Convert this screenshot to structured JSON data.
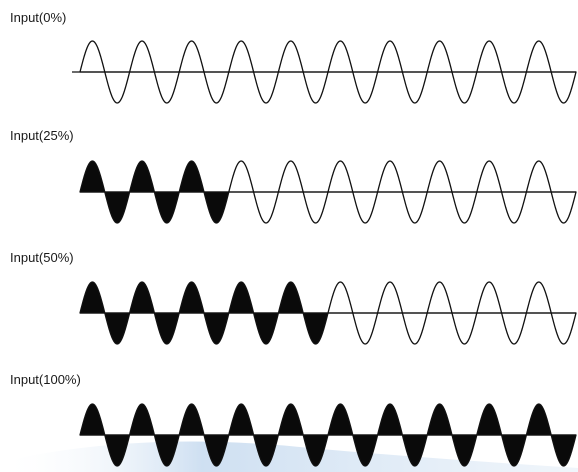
{
  "panels": [
    {
      "label": "Input(0%)",
      "input_fraction": 0.0,
      "cycles": 10
    },
    {
      "label": "Input(25%)",
      "input_fraction": 0.25,
      "cycles": 10
    },
    {
      "label": "Input(50%)",
      "input_fraction": 0.5,
      "cycles": 10
    },
    {
      "label": "Input(100%)",
      "input_fraction": 1.0,
      "cycles": 10
    }
  ],
  "colors": {
    "stroke": "#111111",
    "fill": "#0a0a0a",
    "background_wave": "#dbe8f5"
  }
}
